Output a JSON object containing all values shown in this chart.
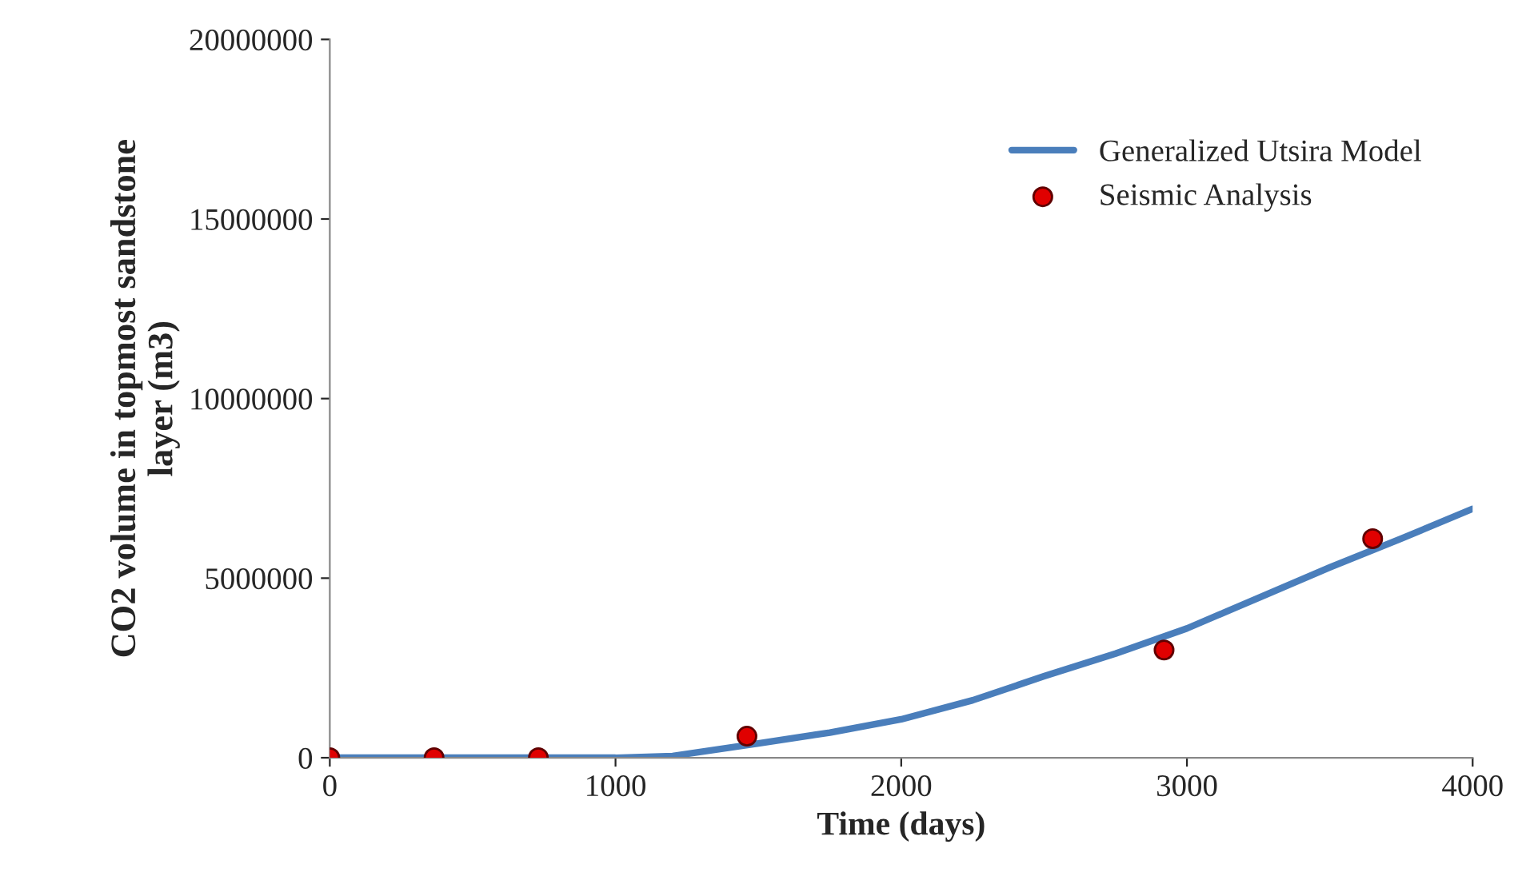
{
  "chart_data": {
    "type": "line",
    "xlabel": "Time (days)",
    "ylabel": "CO2 volume in topmost sandstone\nlayer (m3)",
    "xlim": [
      0,
      4000
    ],
    "xticks": [
      0,
      1000,
      2000,
      3000,
      4000
    ],
    "ylim": [
      0,
      20000000
    ],
    "yticks": [
      0,
      5000000,
      10000000,
      15000000,
      20000000
    ],
    "grid": false,
    "legend": "top right",
    "series": [
      {
        "name": "Generalized Utsira Model",
        "color": "#4a7ebb",
        "marker": "none",
        "line_style": "solid",
        "x": [
          0,
          500,
          1000,
          1200,
          1500,
          1750,
          2000,
          2250,
          2500,
          2750,
          3000,
          3250,
          3500,
          3750,
          4000
        ],
        "values": [
          0,
          0,
          0,
          50000,
          400000,
          700000,
          1070000,
          1600000,
          2270000,
          2900000,
          3600000,
          4450000,
          5300000,
          6100000,
          6930000
        ]
      },
      {
        "name": "Seismic Analysis",
        "type": "scatter",
        "color": "#e00000",
        "marker": "circle",
        "x": [
          0,
          365,
          730,
          1460,
          2920,
          3650
        ],
        "values": [
          0,
          0,
          0,
          600000,
          3000000,
          6100000
        ]
      }
    ]
  }
}
